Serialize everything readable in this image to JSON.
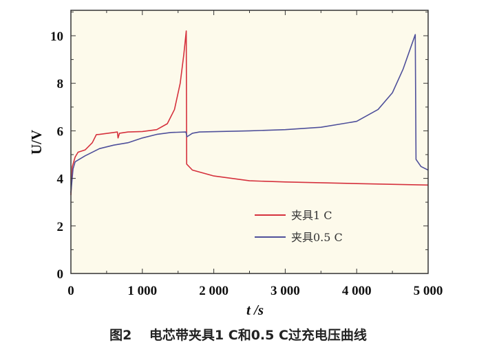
{
  "chart_data": {
    "type": "line",
    "title": "",
    "caption": "图2　 电芯带夹具1 C和0.5 C过充电压曲线",
    "xlabel": "t /s",
    "ylabel": "U/V",
    "xlim": [
      0,
      5000
    ],
    "ylim": [
      0,
      11
    ],
    "xticks": [
      0,
      1000,
      2000,
      3000,
      4000,
      5000
    ],
    "xtick_labels": [
      "0",
      "1 000",
      "2 000",
      "3 000",
      "4 000",
      "5 000"
    ],
    "yticks": [
      0,
      2,
      4,
      6,
      8,
      10
    ],
    "ytick_labels": [
      "0",
      "2",
      "4",
      "6",
      "8",
      "10"
    ],
    "grid": false,
    "legend_position": "lower-center",
    "background": "#fdfaeb",
    "series": [
      {
        "name": "夹具1 C",
        "color": "#d5303c",
        "x": [
          0,
          20,
          60,
          100,
          200,
          300,
          356,
          400,
          600,
          650,
          660,
          680,
          800,
          1000,
          1200,
          1350,
          1450,
          1530,
          1580,
          1615,
          1620,
          1700,
          2000,
          2500,
          3000,
          4000,
          5000
        ],
        "y": [
          3.3,
          4.5,
          4.9,
          5.1,
          5.2,
          5.5,
          5.84,
          5.85,
          5.93,
          5.95,
          5.7,
          5.9,
          5.95,
          5.97,
          6.05,
          6.3,
          6.9,
          8.0,
          9.2,
          10.2,
          4.6,
          4.35,
          4.1,
          3.9,
          3.85,
          3.78,
          3.72
        ]
      },
      {
        "name": "夹具0.5 C",
        "color": "#4e4f9a",
        "x": [
          0,
          30,
          60,
          200,
          400,
          600,
          800,
          1000,
          1200,
          1400,
          1610,
          1625,
          1700,
          1800,
          2500,
          3000,
          3500,
          4000,
          4300,
          4500,
          4650,
          4820,
          4830,
          4900,
          5000
        ],
        "y": [
          3.4,
          4.4,
          4.7,
          4.95,
          5.25,
          5.4,
          5.5,
          5.7,
          5.85,
          5.93,
          5.95,
          5.75,
          5.9,
          5.95,
          6.0,
          6.05,
          6.15,
          6.4,
          6.9,
          7.6,
          8.6,
          10.05,
          4.8,
          4.5,
          4.35
        ]
      }
    ]
  }
}
